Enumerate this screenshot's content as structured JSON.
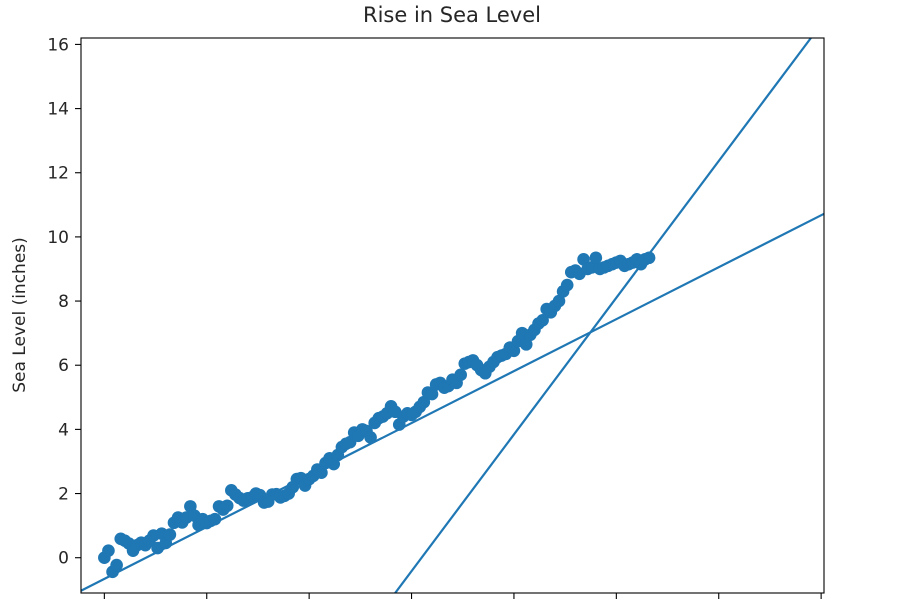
{
  "chart_data": {
    "type": "scatter",
    "title": "Rise in Sea Level",
    "xlabel": "",
    "ylabel": "Sea Level (inches)",
    "xlim": [
      1874.3,
      2055.7
    ],
    "ylim": [
      -1.1,
      16.2
    ],
    "x_ticks": [
      1880,
      1905,
      1930,
      1955,
      1980,
      2005,
      2030,
      2055
    ],
    "x_tick_labels": [],
    "y_ticks": [
      0,
      2,
      4,
      6,
      8,
      10,
      12,
      14,
      16
    ],
    "y_tick_labels": [
      "0",
      "2",
      "4",
      "6",
      "8",
      "10",
      "12",
      "14",
      "16"
    ],
    "grid": false,
    "color": "#1f77b4",
    "series": [
      {
        "type": "scatter",
        "points": [
          [
            1880,
            0.0
          ],
          [
            1881,
            0.22
          ],
          [
            1882,
            -0.44
          ],
          [
            1883,
            -0.23
          ],
          [
            1884,
            0.59
          ],
          [
            1885,
            0.53
          ],
          [
            1886,
            0.44
          ],
          [
            1887,
            0.22
          ],
          [
            1888,
            0.39
          ],
          [
            1889,
            0.47
          ],
          [
            1890,
            0.39
          ],
          [
            1891,
            0.53
          ],
          [
            1892,
            0.69
          ],
          [
            1893,
            0.3
          ],
          [
            1894,
            0.75
          ],
          [
            1895,
            0.46
          ],
          [
            1896,
            0.72
          ],
          [
            1897,
            1.09
          ],
          [
            1898,
            1.25
          ],
          [
            1899,
            1.1
          ],
          [
            1900,
            1.25
          ],
          [
            1901,
            1.6
          ],
          [
            1902,
            1.31
          ],
          [
            1903,
            1.02
          ],
          [
            1904,
            1.2
          ],
          [
            1905,
            1.08
          ],
          [
            1906,
            1.15
          ],
          [
            1907,
            1.2
          ],
          [
            1908,
            1.6
          ],
          [
            1909,
            1.5
          ],
          [
            1910,
            1.62
          ],
          [
            1911,
            2.1
          ],
          [
            1912,
            1.97
          ],
          [
            1913,
            1.86
          ],
          [
            1914,
            1.78
          ],
          [
            1915,
            1.85
          ],
          [
            1916,
            1.88
          ],
          [
            1917,
            2.0
          ],
          [
            1918,
            1.95
          ],
          [
            1919,
            1.72
          ],
          [
            1920,
            1.75
          ],
          [
            1921,
            1.97
          ],
          [
            1922,
            1.98
          ],
          [
            1923,
            1.88
          ],
          [
            1924,
            1.93
          ],
          [
            1925,
            2.0
          ],
          [
            1926,
            2.2
          ],
          [
            1927,
            2.45
          ],
          [
            1928,
            2.48
          ],
          [
            1929,
            2.25
          ],
          [
            1930,
            2.45
          ],
          [
            1931,
            2.55
          ],
          [
            1932,
            2.75
          ],
          [
            1933,
            2.65
          ],
          [
            1934,
            2.95
          ],
          [
            1935,
            3.1
          ],
          [
            1936,
            2.92
          ],
          [
            1937,
            3.2
          ],
          [
            1938,
            3.45
          ],
          [
            1939,
            3.55
          ],
          [
            1940,
            3.6
          ],
          [
            1941,
            3.9
          ],
          [
            1942,
            3.8
          ],
          [
            1943,
            4.0
          ],
          [
            1944,
            3.95
          ],
          [
            1945,
            3.75
          ],
          [
            1946,
            4.2
          ],
          [
            1947,
            4.35
          ],
          [
            1948,
            4.4
          ],
          [
            1949,
            4.5
          ],
          [
            1950,
            4.72
          ],
          [
            1951,
            4.55
          ],
          [
            1952,
            4.15
          ],
          [
            1953,
            4.4
          ],
          [
            1954,
            4.5
          ],
          [
            1955,
            4.45
          ],
          [
            1956,
            4.55
          ],
          [
            1957,
            4.7
          ],
          [
            1958,
            4.85
          ],
          [
            1959,
            5.15
          ],
          [
            1960,
            5.1
          ],
          [
            1961,
            5.4
          ],
          [
            1962,
            5.45
          ],
          [
            1963,
            5.3
          ],
          [
            1964,
            5.35
          ],
          [
            1965,
            5.55
          ],
          [
            1966,
            5.45
          ],
          [
            1967,
            5.7
          ],
          [
            1968,
            6.05
          ],
          [
            1969,
            6.1
          ],
          [
            1970,
            6.15
          ],
          [
            1971,
            6.0
          ],
          [
            1972,
            5.85
          ],
          [
            1973,
            5.75
          ],
          [
            1974,
            5.95
          ],
          [
            1975,
            6.1
          ],
          [
            1976,
            6.25
          ],
          [
            1977,
            6.3
          ],
          [
            1978,
            6.35
          ],
          [
            1979,
            6.55
          ],
          [
            1980,
            6.45
          ],
          [
            1981,
            6.75
          ],
          [
            1982,
            7.0
          ],
          [
            1983,
            6.65
          ],
          [
            1984,
            6.95
          ],
          [
            1985,
            7.1
          ],
          [
            1986,
            7.3
          ],
          [
            1987,
            7.4
          ],
          [
            1988,
            7.75
          ],
          [
            1989,
            7.65
          ],
          [
            1990,
            7.85
          ],
          [
            1991,
            8.0
          ],
          [
            1992,
            8.3
          ],
          [
            1993,
            8.5
          ],
          [
            1994,
            8.9
          ],
          [
            1995,
            8.95
          ],
          [
            1996,
            8.85
          ],
          [
            1997,
            9.3
          ],
          [
            1998,
            9.0
          ],
          [
            1999,
            9.05
          ],
          [
            2000,
            9.35
          ],
          [
            2001,
            9.0
          ],
          [
            2002,
            9.05
          ],
          [
            2003,
            9.1
          ],
          [
            2004,
            9.15
          ],
          [
            2005,
            9.2
          ],
          [
            2006,
            9.25
          ],
          [
            2007,
            9.1
          ],
          [
            2008,
            9.15
          ],
          [
            2009,
            9.2
          ],
          [
            2010,
            9.3
          ],
          [
            2011,
            9.15
          ],
          [
            2012,
            9.3
          ],
          [
            2013,
            9.35
          ]
        ]
      },
      {
        "type": "line",
        "x": [
          1874.3,
          2055.7
        ],
        "y": [
          -1.03,
          10.72
        ]
      },
      {
        "type": "line",
        "x": [
          1951.0,
          2052.5
        ],
        "y": [
          -1.1,
          16.2
        ]
      }
    ]
  }
}
